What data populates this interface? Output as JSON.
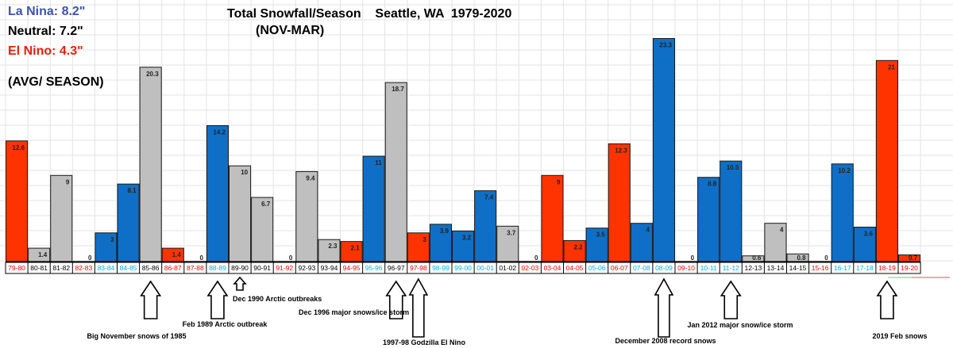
{
  "chart_data": {
    "type": "bar",
    "title": "Total Snowfall/Season    Seattle, WA  1979-2020",
    "subtitle": "(NOV-MAR)",
    "xlabel": "",
    "ylabel": "",
    "ylim": [
      0,
      25
    ],
    "grid": true,
    "categories": [
      "79-80",
      "80-81",
      "81-82",
      "82-83",
      "83-84",
      "84-85",
      "85-86",
      "86-87",
      "87-88",
      "88-89",
      "89-90",
      "90-91",
      "91-92",
      "92-93",
      "93-94",
      "94-95",
      "95-96",
      "96-97",
      "97-98",
      "98-99",
      "99-00",
      "00-01",
      "01-02",
      "02-03",
      "03-04",
      "04-05",
      "05-06",
      "06-07",
      "07-08",
      "08-09",
      "09-10",
      "10-11",
      "11-12",
      "12-13",
      "13-14",
      "14-15",
      "15-16",
      "16-17",
      "17-18",
      "18-19",
      "19-20"
    ],
    "values": [
      12.6,
      1.4,
      9,
      0,
      3,
      8.1,
      20.3,
      1.4,
      0,
      14.2,
      10,
      6.7,
      0,
      9.4,
      2.3,
      2.1,
      11,
      18.7,
      3,
      3.9,
      3.2,
      7.4,
      3.7,
      0,
      9,
      2.2,
      3.5,
      12.3,
      4,
      23.3,
      0,
      8.8,
      10.5,
      0.6,
      4,
      0.8,
      0,
      10.2,
      3.6,
      21,
      0.7
    ],
    "labels": [
      "12.6",
      "1.4",
      "9",
      "0",
      "3",
      "8.1",
      "20.3",
      "1.4",
      "0",
      "14.2",
      "10",
      "6.7",
      "0",
      "9.4",
      "2.3",
      "2.1",
      "11",
      "18.7",
      "3",
      "3.9",
      "3.2",
      "7.4",
      "3.7",
      "0",
      "9",
      "2.2",
      "3.5",
      "12.3",
      "4",
      "23.3",
      "0",
      "8.8",
      "10.5",
      "0.6",
      "4",
      "0.8",
      "0",
      "10.2",
      "3.6",
      "21",
      "0.7"
    ],
    "enso": [
      "N",
      "U",
      "U",
      "N",
      "L",
      "L",
      "U",
      "N",
      "N",
      "L",
      "U",
      "U",
      "N",
      "U",
      "U",
      "N",
      "L",
      "U",
      "N",
      "L",
      "L",
      "L",
      "U",
      "N",
      "N",
      "N",
      "L",
      "N",
      "L",
      "L",
      "N",
      "L",
      "L",
      "U",
      "U",
      "U",
      "N",
      "L",
      "L",
      "N",
      "N"
    ],
    "phases": {
      "L": {
        "name": "La Nina",
        "bar_color": "#0F6FC6",
        "label_color": "#00B0F0"
      },
      "U": {
        "name": "Neutral",
        "bar_color": "#BFBFBF",
        "label_color": "#000000"
      },
      "N": {
        "name": "El Nino",
        "bar_color": "#FF3300",
        "label_color": "#FF0000"
      }
    },
    "legend": [
      {
        "text": "La Nina: 8.2\"",
        "color": "#3F51B5"
      },
      {
        "text": "Neutral: 7.2\"",
        "color": "#000000"
      },
      {
        "text": "El Nino: 4.3\"",
        "color": "#E8200C"
      }
    ],
    "legend_note": "(AVG/ SEASON)",
    "legend_position": "top-left",
    "annotations": [
      {
        "text": "Big November snows of 1985",
        "season": "85-86",
        "arrow": "big"
      },
      {
        "text": "Feb 1989 Arctic outbreak",
        "season": "88-89",
        "arrow": "big"
      },
      {
        "text": "Dec 1990 Arctic outbreaks",
        "season": "89-90",
        "arrow": "small"
      },
      {
        "text": "Dec 1996 major snows/ice storm",
        "season": "96-97",
        "arrow": "big"
      },
      {
        "text": "1997-98 Godzilla El Nino",
        "season": "97-98",
        "arrow": "tall"
      },
      {
        "text": "December 2008 record snows",
        "season": "08-09",
        "arrow": "tall"
      },
      {
        "text": "Jan 2012 major snow/ice storm",
        "season": "11-12",
        "arrow": "big"
      },
      {
        "text": "2019 Feb snows",
        "season": "18-19",
        "arrow": "big"
      }
    ]
  }
}
